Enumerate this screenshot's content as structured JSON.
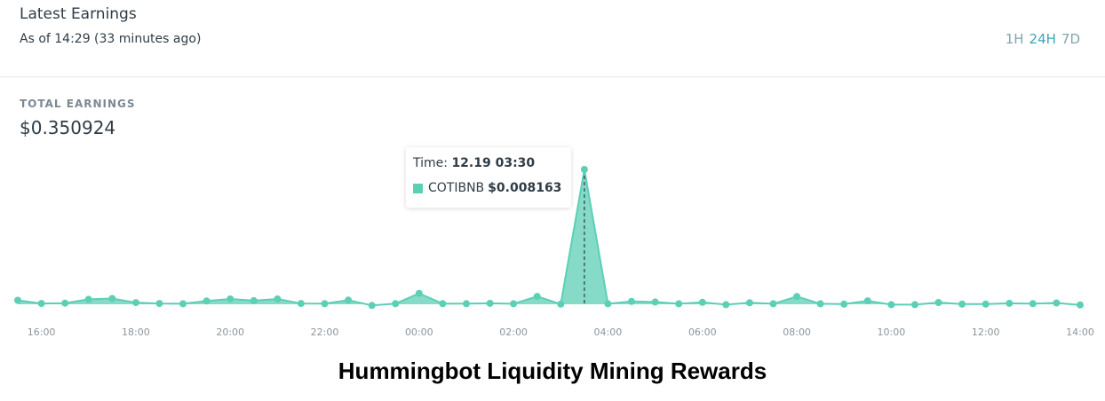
{
  "panel": {
    "title": "Latest Earnings",
    "subtitle": "As of 14:29 (33 minutes ago)",
    "ranges": [
      "1H",
      "24H",
      "7D"
    ],
    "active_range": "24H",
    "total_label": "TOTAL EARNINGS",
    "total_value": "$0.350924"
  },
  "tooltip": {
    "time_label": "Time:",
    "time_value": "12.19 03:30",
    "series_label": "COTIBNB",
    "series_value": "$0.008163"
  },
  "caption": "Hummingbot Liquidity Mining Rewards",
  "colors": {
    "series": "#5ccfb5",
    "accent": "#3aa7b8",
    "text": "#2f3c46"
  },
  "chart_data": {
    "type": "area",
    "x_tick_labels": [
      "16:00",
      "18:00",
      "20:00",
      "22:00",
      "00:00",
      "02:00",
      "04:00",
      "06:00",
      "08:00",
      "10:00",
      "12:00",
      "14:00"
    ],
    "x_start_hour": 15.5,
    "x_end_hour": 38,
    "series": [
      {
        "name": "COTIBNB",
        "values": [
          0.00024,
          5e-05,
          7e-05,
          0.0003,
          0.00035,
          0.0001,
          5e-05,
          3e-05,
          0.0002,
          0.00032,
          0.00022,
          0.00032,
          5e-05,
          4e-05,
          0.00025,
          -7e-05,
          4e-05,
          0.00066,
          4e-05,
          4e-05,
          6e-05,
          3e-05,
          0.00048,
          1e-05,
          0.008163,
          3e-05,
          0.00017,
          0.00014,
          3e-05,
          0.00012,
          -2e-05,
          9e-05,
          3e-05,
          0.00047,
          3e-05,
          1e-05,
          0.00021,
          -2e-05,
          -2e-05,
          0.00011,
          1e-05,
          1e-05,
          6e-05,
          4e-05,
          8e-05,
          -4e-05
        ]
      }
    ],
    "highlighted_point": {
      "x": "12.19 03:30",
      "y": 0.008163
    },
    "grid": false,
    "legend": "none"
  }
}
